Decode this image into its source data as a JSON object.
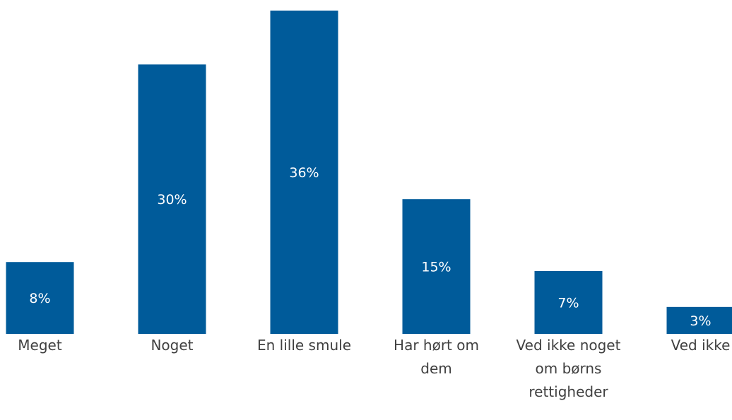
{
  "chart_data": {
    "type": "bar",
    "categories": [
      [
        "Meget"
      ],
      [
        "Noget"
      ],
      [
        "En lille smule"
      ],
      [
        "Har hørt om",
        "dem"
      ],
      [
        "Ved ikke noget",
        "om børns",
        "rettigheder"
      ],
      [
        "Ved ikke"
      ]
    ],
    "values": [
      8,
      30,
      36,
      15,
      7,
      3
    ],
    "value_labels": [
      "8%",
      "30%",
      "36%",
      "15%",
      "7%",
      "3%"
    ],
    "title": "",
    "xlabel": "",
    "ylabel": "",
    "ylim": [
      0,
      36
    ],
    "grid": false,
    "legend": "none",
    "colors": {
      "bar": "#005b9a",
      "bar_text": "#ffffff",
      "category_text": "#404040"
    }
  }
}
